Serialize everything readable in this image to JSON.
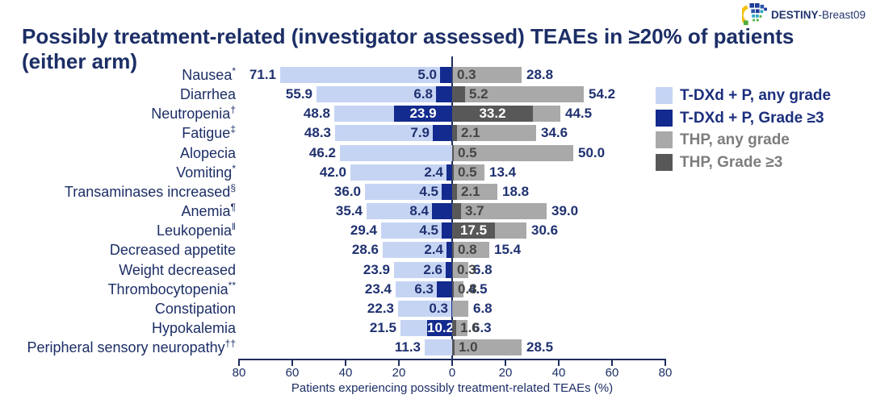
{
  "logo": {
    "icon": "destiny-mosaic-fan-icon",
    "text_bold": "DESTINY",
    "text_rest": "-Breast09"
  },
  "title": {
    "line1": "Possibly treatment-related (investigator assessed) TEAEs in ≥20% of patients",
    "line2": "(either arm)"
  },
  "legend": {
    "items": [
      {
        "label": "T-DXd + P, any grade",
        "swatch_color": "#c6d4f4",
        "label_color": "#1c2f7d"
      },
      {
        "label": "T-DXd + P, Grade ≥3",
        "swatch_color": "#132a8e",
        "label_color": "#1c2f7d"
      },
      {
        "label": "THP, any grade",
        "swatch_color": "#a9a9a9",
        "label_color": "#7d7d7d"
      },
      {
        "label": "THP, Grade ≥3",
        "swatch_color": "#585858",
        "label_color": "#7d7d7d"
      }
    ]
  },
  "chart_data": {
    "type": "bar",
    "subtype": "diverging-horizontal-tornado",
    "unit": "%",
    "xlabel": "Patients experiencing possibly treatment-related TEAEs (%)",
    "axis_ticks": [
      80,
      60,
      40,
      20,
      0,
      20,
      40,
      60,
      80
    ],
    "xlim_left": 80,
    "xlim_right": 80,
    "grid": false,
    "legend_position": "right",
    "series": [
      {
        "name": "T-DXd + P, any grade",
        "side": "left",
        "color": "#c6d4f4"
      },
      {
        "name": "T-DXd + P, Grade ≥3",
        "side": "left",
        "color": "#132a8e"
      },
      {
        "name": "THP, any grade",
        "side": "right",
        "color": "#a9a9a9"
      },
      {
        "name": "THP, Grade ≥3",
        "side": "right",
        "color": "#585858"
      }
    ],
    "rows": [
      {
        "label": "Nausea",
        "marker": "*",
        "tdxd_any_grade": 71.1,
        "tdxd_grade3plus": 5.0,
        "thp_grade3plus": 0.3,
        "thp_any_grade": 28.8
      },
      {
        "label": "Diarrhea",
        "marker": "",
        "tdxd_any_grade": 55.9,
        "tdxd_grade3plus": 6.8,
        "thp_grade3plus": 5.2,
        "thp_any_grade": 54.2
      },
      {
        "label": "Neutropenia",
        "marker": "†",
        "tdxd_any_grade": 48.8,
        "tdxd_grade3plus": 23.9,
        "thp_grade3plus": 33.2,
        "thp_any_grade": 44.5
      },
      {
        "label": "Fatigue",
        "marker": "‡",
        "tdxd_any_grade": 48.3,
        "tdxd_grade3plus": 7.9,
        "thp_grade3plus": 2.1,
        "thp_any_grade": 34.6
      },
      {
        "label": "Alopecia",
        "marker": "",
        "tdxd_any_grade": 46.2,
        "tdxd_grade3plus": null,
        "thp_grade3plus": 0.5,
        "thp_any_grade": 50.0
      },
      {
        "label": "Vomiting",
        "marker": "*",
        "tdxd_any_grade": 42.0,
        "tdxd_grade3plus": 2.4,
        "thp_grade3plus": 0.5,
        "thp_any_grade": 13.4
      },
      {
        "label": "Transaminases increased",
        "marker": "§",
        "tdxd_any_grade": 36.0,
        "tdxd_grade3plus": 4.5,
        "thp_grade3plus": 2.1,
        "thp_any_grade": 18.8
      },
      {
        "label": "Anemia",
        "marker": "¶",
        "tdxd_any_grade": 35.4,
        "tdxd_grade3plus": 8.4,
        "thp_grade3plus": 3.7,
        "thp_any_grade": 39.0
      },
      {
        "label": "Leukopenia",
        "marker": "‖",
        "tdxd_any_grade": 29.4,
        "tdxd_grade3plus": 4.5,
        "thp_grade3plus": 17.5,
        "thp_any_grade": 30.6
      },
      {
        "label": "Decreased appetite",
        "marker": "",
        "tdxd_any_grade": 28.6,
        "tdxd_grade3plus": 2.4,
        "thp_grade3plus": 0.8,
        "thp_any_grade": 15.4
      },
      {
        "label": "Weight decreased",
        "marker": "",
        "tdxd_any_grade": 23.9,
        "tdxd_grade3plus": 2.6,
        "thp_grade3plus": 0.3,
        "thp_any_grade": 6.8
      },
      {
        "label": "Thrombocytopenia",
        "marker": "**",
        "tdxd_any_grade": 23.4,
        "tdxd_grade3plus": 6.3,
        "thp_grade3plus": 0.8,
        "thp_any_grade": 4.5
      },
      {
        "label": "Constipation",
        "marker": "",
        "tdxd_any_grade": 22.3,
        "tdxd_grade3plus": 0.3,
        "thp_grade3plus": null,
        "thp_any_grade": 6.8
      },
      {
        "label": "Hypokalemia",
        "marker": "",
        "tdxd_any_grade": 21.5,
        "tdxd_grade3plus": 10.2,
        "thp_grade3plus": 1.6,
        "thp_any_grade": 6.3
      },
      {
        "label": "Peripheral sensory neuropathy",
        "marker": "††",
        "tdxd_any_grade": 11.3,
        "tdxd_grade3plus": null,
        "thp_grade3plus": 1.0,
        "thp_any_grade": 28.5
      }
    ]
  },
  "colors": {
    "title_text": "#1c2e66",
    "value_text_navy": "#1f3170",
    "value_text_gray": "#454545",
    "value_text_inside": "#ffffff",
    "axis": "#1f2d5e",
    "background": "#ffffff",
    "tdxd_any": "#c6d4f4",
    "tdxd_grade3": "#132a8e",
    "thp_any": "#a9a9a9",
    "thp_grade3": "#585858"
  }
}
